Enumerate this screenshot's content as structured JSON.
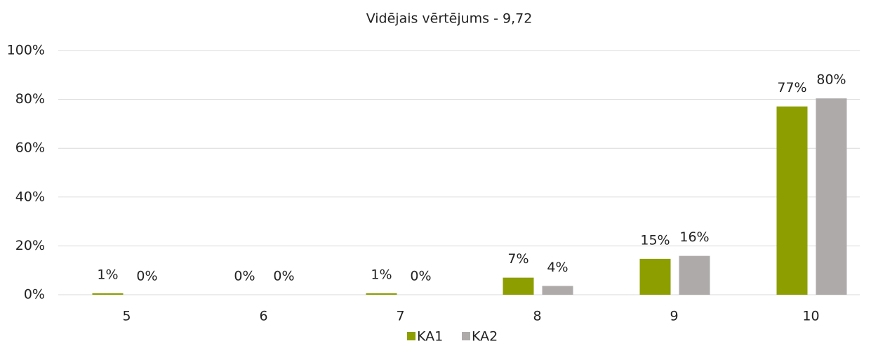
{
  "chart_data": {
    "type": "bar",
    "title": "Vidējais vērtējums - 9,72",
    "categories": [
      "5",
      "6",
      "7",
      "8",
      "9",
      "10"
    ],
    "series": [
      {
        "name": "KA1",
        "color": "#8c9e00",
        "values": [
          0.6,
          0,
          0.6,
          7,
          14.7,
          77.1
        ],
        "value_labels": [
          "1%",
          "0%",
          "1%",
          "7%",
          "15%",
          "77%"
        ]
      },
      {
        "name": "KA2",
        "color": "#aeaaaa",
        "values": [
          0,
          0,
          0,
          3.6,
          15.9,
          80.4
        ],
        "value_labels": [
          "0%",
          "0%",
          "0%",
          "4%",
          "16%",
          "80%"
        ]
      }
    ],
    "ylim": [
      0,
      100
    ],
    "yticks": [
      {
        "value": 0,
        "label": "0%"
      },
      {
        "value": 20,
        "label": "20%"
      },
      {
        "value": 40,
        "label": "40%"
      },
      {
        "value": 60,
        "label": "60%"
      },
      {
        "value": 80,
        "label": "80%"
      },
      {
        "value": 100,
        "label": "100%"
      }
    ],
    "grid": true,
    "legend": "bottom"
  }
}
